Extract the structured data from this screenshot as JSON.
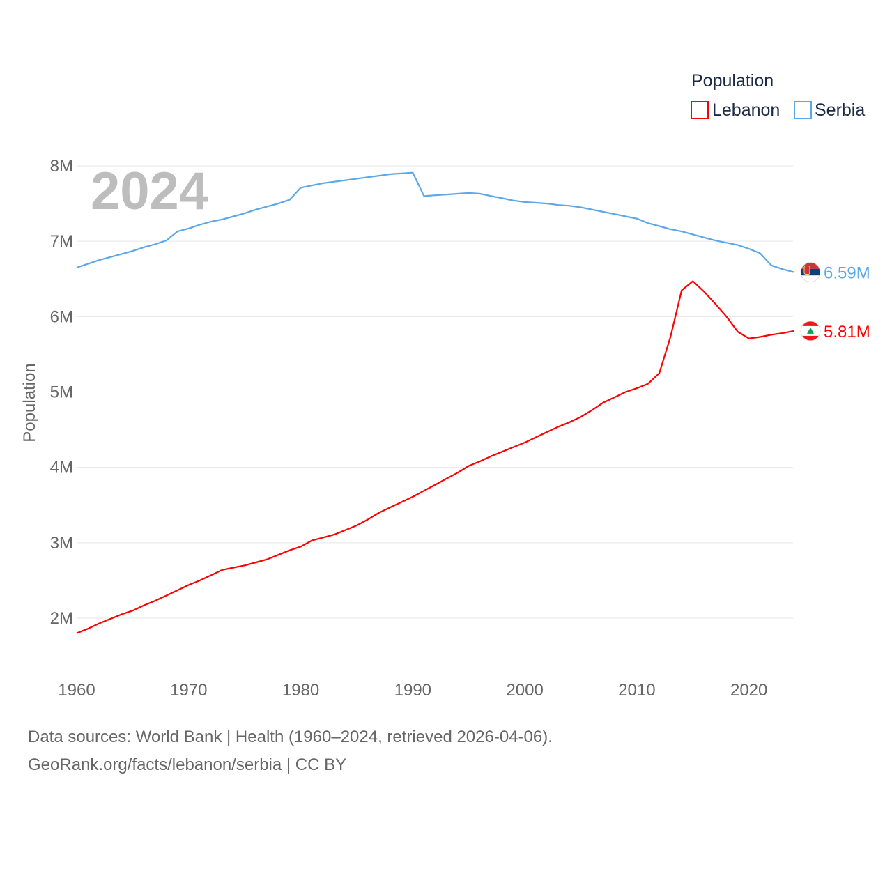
{
  "chart_data": {
    "type": "line",
    "title": "",
    "xlabel": "",
    "ylabel": "Population",
    "xlim": [
      1960,
      2024
    ],
    "ylim": [
      1.5,
      8
    ],
    "y_unit": "M",
    "grid": true,
    "year_overlay": "2024",
    "x_ticks": [
      1960,
      1970,
      1980,
      1990,
      2000,
      2010,
      2020
    ],
    "x_tick_labels": [
      "1960",
      "1970",
      "1980",
      "1990",
      "2000",
      "2010",
      "2020"
    ],
    "y_ticks": [
      2,
      3,
      4,
      5,
      6,
      7,
      8
    ],
    "y_tick_labels": [
      "2M",
      "3M",
      "4M",
      "5M",
      "6M",
      "7M",
      "8M"
    ],
    "legend": {
      "title": "Population",
      "placement": "top-right",
      "entries": [
        "Lebanon",
        "Serbia"
      ]
    },
    "x": [
      1960,
      1961,
      1962,
      1963,
      1964,
      1965,
      1966,
      1967,
      1968,
      1969,
      1970,
      1971,
      1972,
      1973,
      1974,
      1975,
      1976,
      1977,
      1978,
      1979,
      1980,
      1981,
      1982,
      1983,
      1984,
      1985,
      1986,
      1987,
      1988,
      1989,
      1990,
      1991,
      1992,
      1993,
      1994,
      1995,
      1996,
      1997,
      1998,
      1999,
      2000,
      2001,
      2002,
      2003,
      2004,
      2005,
      2006,
      2007,
      2008,
      2009,
      2010,
      2011,
      2012,
      2013,
      2014,
      2015,
      2016,
      2017,
      2018,
      2019,
      2020,
      2021,
      2022,
      2023,
      2024
    ],
    "series": [
      {
        "name": "Lebanon",
        "color": "#ff0000",
        "end_label": "5.81M",
        "flag": "lebanon-flag",
        "values": [
          1.8,
          1.86,
          1.93,
          1.99,
          2.05,
          2.1,
          2.17,
          2.23,
          2.3,
          2.37,
          2.44,
          2.5,
          2.57,
          2.64,
          2.67,
          2.7,
          2.74,
          2.78,
          2.84,
          2.9,
          2.95,
          3.03,
          3.07,
          3.11,
          3.17,
          3.23,
          3.31,
          3.4,
          3.47,
          3.54,
          3.61,
          3.69,
          3.77,
          3.85,
          3.93,
          4.02,
          4.08,
          4.15,
          4.21,
          4.27,
          4.33,
          4.4,
          4.47,
          4.54,
          4.6,
          4.67,
          4.76,
          4.86,
          4.93,
          5.0,
          5.05,
          5.11,
          5.25,
          5.73,
          6.35,
          6.47,
          6.33,
          6.17,
          6.0,
          5.8,
          5.71,
          5.73,
          5.76,
          5.78,
          5.81
        ]
      },
      {
        "name": "Serbia",
        "color": "#5ba7ea",
        "end_label": "6.59M",
        "flag": "serbia-flag",
        "values": [
          6.65,
          6.7,
          6.75,
          6.79,
          6.83,
          6.87,
          6.92,
          6.96,
          7.01,
          7.13,
          7.17,
          7.22,
          7.26,
          7.29,
          7.33,
          7.37,
          7.42,
          7.46,
          7.5,
          7.55,
          7.71,
          7.74,
          7.77,
          7.79,
          7.81,
          7.83,
          7.85,
          7.87,
          7.89,
          7.9,
          7.91,
          7.6,
          7.61,
          7.62,
          7.63,
          7.64,
          7.63,
          7.6,
          7.57,
          7.54,
          7.52,
          7.51,
          7.5,
          7.48,
          7.47,
          7.45,
          7.42,
          7.39,
          7.36,
          7.33,
          7.3,
          7.24,
          7.2,
          7.16,
          7.13,
          7.09,
          7.05,
          7.01,
          6.98,
          6.95,
          6.9,
          6.84,
          6.68,
          6.63,
          6.59
        ]
      }
    ]
  },
  "footer": {
    "line1": "Data sources: World Bank | Health (1960–2024, retrieved 2026-04-06).",
    "line2": "GeoRank.org/facts/lebanon/serbia | CC BY"
  }
}
